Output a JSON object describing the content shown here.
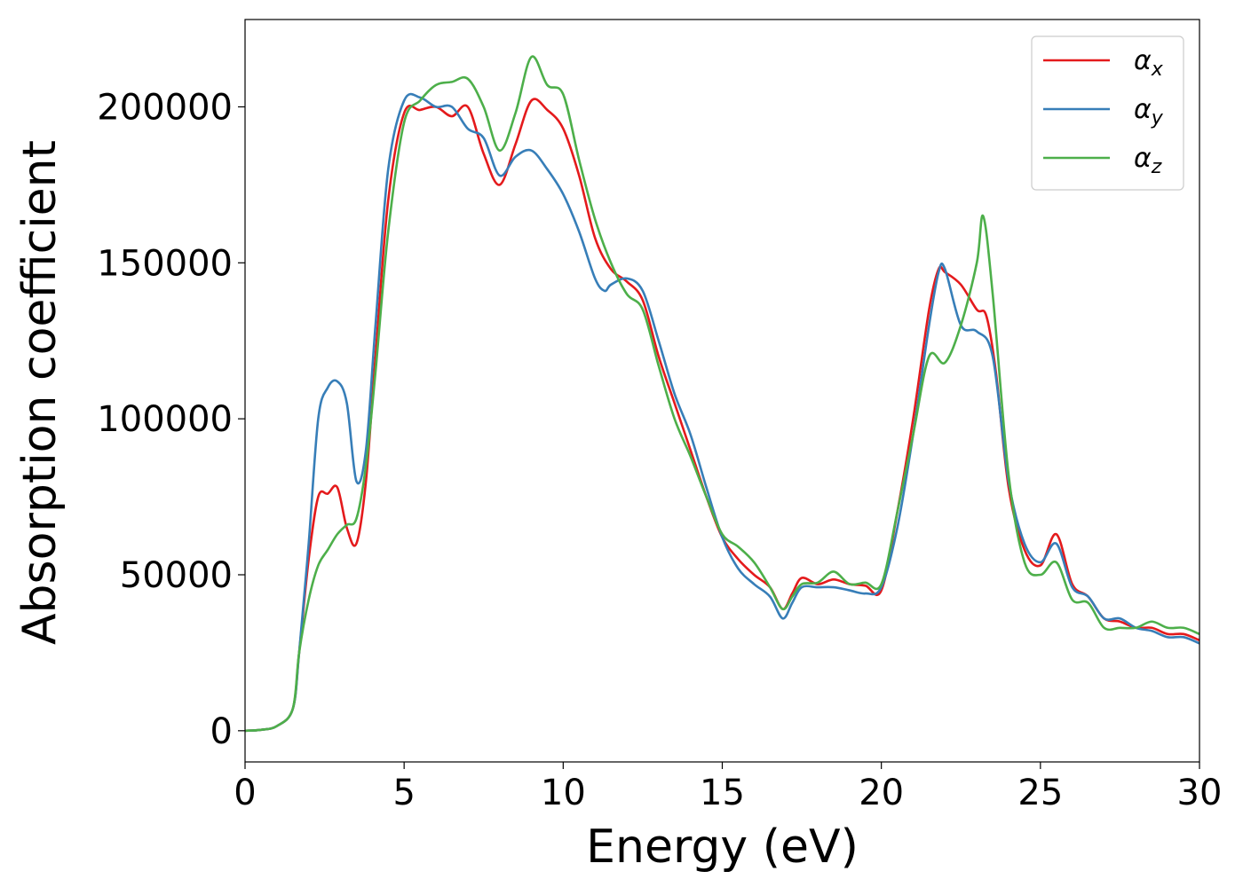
{
  "chart_data": {
    "type": "line",
    "title": "",
    "xlabel": "Energy (eV)",
    "ylabel": "Absorption coefficient",
    "xlim": [
      0,
      30
    ],
    "ylim": [
      -10000,
      228000
    ],
    "grid": false,
    "legend_position": "top-right",
    "x_ticks": [
      0,
      5,
      10,
      15,
      20,
      25,
      30
    ],
    "x_tick_labels": [
      "0",
      "5",
      "10",
      "15",
      "20",
      "25",
      "30"
    ],
    "y_ticks": [
      0,
      50000,
      100000,
      150000,
      200000
    ],
    "y_tick_labels": [
      "0",
      "50000",
      "100000",
      "150000",
      "200000"
    ],
    "series": [
      {
        "name": "αx",
        "legend_main": "α",
        "legend_sub": "x",
        "color": "#e41a1c",
        "x": [
          0,
          0.5,
          1.0,
          1.5,
          1.7,
          2.0,
          2.3,
          2.6,
          2.9,
          3.2,
          3.5,
          3.8,
          4.1,
          4.5,
          5.0,
          5.5,
          6.0,
          6.5,
          7.0,
          7.5,
          8.0,
          8.5,
          9.0,
          9.5,
          10.0,
          10.5,
          11.0,
          11.5,
          12.0,
          12.5,
          13.0,
          13.5,
          14.0,
          14.5,
          15.0,
          15.5,
          16.0,
          16.5,
          16.9,
          17.2,
          17.5,
          18.0,
          18.5,
          19.0,
          19.5,
          20.0,
          20.5,
          21.0,
          21.5,
          21.8,
          22.0,
          22.5,
          23.0,
          23.3,
          23.6,
          24.0,
          24.5,
          25.0,
          25.5,
          26.0,
          26.5,
          27.0,
          27.5,
          28.0,
          28.5,
          29.0,
          29.5,
          30.0
        ],
        "values": [
          0,
          300,
          1500,
          7000,
          25000,
          55000,
          75000,
          76000,
          78000,
          65000,
          60000,
          80000,
          120000,
          170000,
          198000,
          199000,
          200000,
          197000,
          200000,
          185000,
          175000,
          188000,
          202000,
          199000,
          193000,
          178000,
          158000,
          148000,
          144000,
          138000,
          120000,
          105000,
          90000,
          75000,
          62000,
          55000,
          50000,
          46000,
          39000,
          44000,
          49000,
          47000,
          48500,
          47000,
          46500,
          45000,
          70000,
          100000,
          135000,
          148000,
          147000,
          143000,
          135000,
          133000,
          115000,
          78000,
          58000,
          53000,
          63000,
          47000,
          43000,
          36000,
          35000,
          33000,
          33000,
          31000,
          31000,
          29000
        ]
      },
      {
        "name": "αy",
        "legend_main": "α",
        "legend_sub": "y",
        "color": "#377eb8",
        "x": [
          0,
          0.5,
          1.0,
          1.5,
          1.7,
          2.0,
          2.3,
          2.6,
          2.9,
          3.2,
          3.5,
          3.8,
          4.1,
          4.5,
          5.0,
          5.5,
          6.0,
          6.5,
          7.0,
          7.5,
          8.0,
          8.5,
          9.0,
          9.5,
          10.0,
          10.5,
          11.0,
          11.3,
          11.5,
          12.0,
          12.5,
          13.0,
          13.5,
          14.0,
          14.5,
          15.0,
          15.5,
          16.0,
          16.5,
          16.9,
          17.2,
          17.5,
          18.0,
          18.5,
          19.0,
          19.5,
          20.0,
          20.5,
          21.0,
          21.5,
          21.8,
          22.0,
          22.5,
          23.0,
          23.5,
          24.0,
          24.5,
          25.0,
          25.5,
          26.0,
          26.5,
          27.0,
          27.5,
          28.0,
          28.5,
          29.0,
          29.5,
          30.0
        ],
        "values": [
          0,
          300,
          1500,
          7000,
          25000,
          60000,
          100000,
          110000,
          112000,
          105000,
          80000,
          90000,
          130000,
          180000,
          202000,
          203000,
          200000,
          200000,
          193000,
          190000,
          178000,
          184000,
          186000,
          180000,
          172000,
          160000,
          145000,
          141000,
          143000,
          145000,
          141000,
          125000,
          108000,
          95000,
          78000,
          62000,
          52000,
          47000,
          43000,
          36000,
          41000,
          46000,
          46000,
          46000,
          45000,
          44000,
          46000,
          65000,
          95000,
          130000,
          147000,
          148000,
          130000,
          128000,
          120000,
          80000,
          60000,
          54000,
          60000,
          46000,
          43000,
          36000,
          36000,
          33000,
          32000,
          30000,
          30000,
          28000
        ]
      },
      {
        "name": "αz",
        "legend_main": "α",
        "legend_sub": "z",
        "color": "#4daf4a",
        "x": [
          0,
          0.5,
          1.0,
          1.5,
          1.7,
          2.0,
          2.3,
          2.6,
          2.9,
          3.2,
          3.5,
          3.8,
          4.1,
          4.5,
          5.0,
          5.5,
          6.0,
          6.5,
          7.0,
          7.5,
          8.0,
          8.5,
          9.0,
          9.5,
          10.0,
          10.5,
          11.0,
          11.5,
          12.0,
          12.5,
          13.0,
          13.5,
          14.0,
          14.5,
          15.0,
          15.5,
          16.0,
          16.5,
          16.9,
          17.2,
          17.5,
          18.0,
          18.5,
          19.0,
          19.5,
          20.0,
          20.5,
          21.0,
          21.5,
          22.0,
          22.5,
          23.0,
          23.2,
          23.5,
          24.0,
          24.5,
          25.0,
          25.5,
          26.0,
          26.5,
          27.0,
          27.5,
          28.0,
          28.5,
          29.0,
          29.5,
          30.0
        ],
        "values": [
          0,
          300,
          1500,
          7000,
          25000,
          42000,
          53000,
          58000,
          63000,
          66000,
          68000,
          85000,
          115000,
          160000,
          195000,
          202000,
          207000,
          208000,
          209000,
          200000,
          186000,
          198000,
          216000,
          207000,
          204000,
          183000,
          164000,
          150000,
          140000,
          135000,
          117000,
          100000,
          88000,
          75000,
          63000,
          59000,
          54000,
          46000,
          39000,
          43000,
          47000,
          47500,
          51000,
          47000,
          47500,
          47000,
          70000,
          95000,
          120000,
          118000,
          130000,
          150000,
          165000,
          140000,
          82000,
          54000,
          50000,
          54000,
          42000,
          41000,
          33000,
          33000,
          33000,
          35000,
          33000,
          33000,
          31000
        ]
      }
    ]
  }
}
